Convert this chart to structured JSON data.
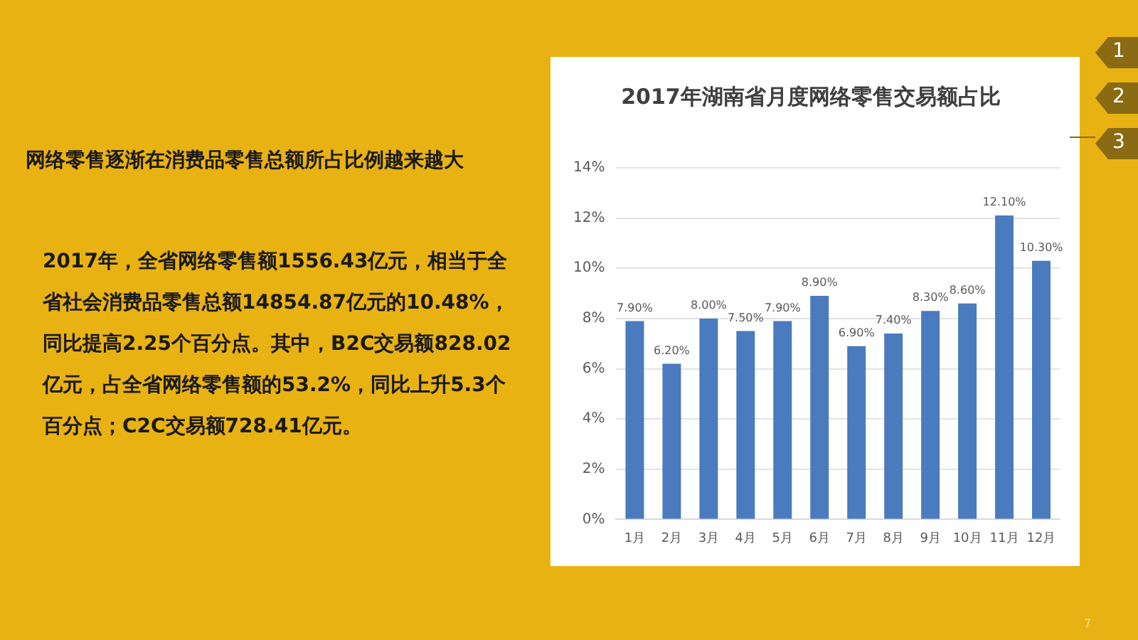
{
  "chart_data": {
    "type": "bar",
    "title": "2017年湖南省月度网络零售交易额占比",
    "categories": [
      "1月",
      "2月",
      "3月",
      "4月",
      "5月",
      "6月",
      "7月",
      "8月",
      "9月",
      "10月",
      "11月",
      "12月"
    ],
    "values": [
      7.9,
      6.2,
      8.0,
      7.5,
      7.9,
      8.9,
      6.9,
      7.4,
      8.3,
      8.6,
      12.1,
      10.3
    ],
    "value_labels": [
      "7.90%",
      "6.20%",
      "8.00%",
      "7.50%",
      "7.90%",
      "8.90%",
      "6.90%",
      "7.40%",
      "8.30%",
      "8.60%",
      "12.10%",
      "10.30%"
    ],
    "color": "#4a7bbf",
    "ylim": [
      0,
      14
    ],
    "yticks": [
      {
        "value": 0,
        "label": "0%"
      },
      {
        "value": 2,
        "label": "2%"
      },
      {
        "value": 4,
        "label": "4%"
      },
      {
        "value": 6,
        "label": "6%"
      },
      {
        "value": 8,
        "label": "8%"
      },
      {
        "value": 10,
        "label": "10%"
      },
      {
        "value": 12,
        "label": "12%"
      },
      {
        "value": 14,
        "label": "14%"
      }
    ],
    "grid": "y",
    "annotations": [
      "网络零售逐渐在消费品零售总额所占比例越来越大",
      "2017年，全省网络零售额1556.43亿元，相当于全省社会消费品零售总额14854.87亿元的10.48%，同比提高2.25个百分点。其中，B2C交易额828.02亿元，占全省网络零售额的53.2%，同比上升5.3个百分点；C2C交易额728.41亿元。",
      "1",
      "2",
      "3",
      "7"
    ]
  }
}
